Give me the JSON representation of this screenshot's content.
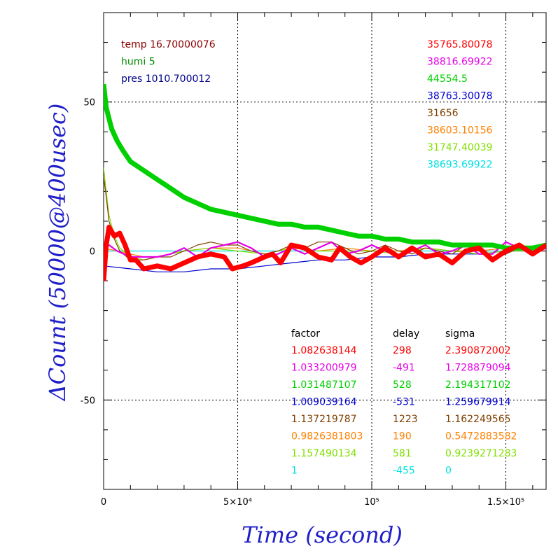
{
  "chart_data": {
    "type": "line",
    "xlabel": "Time (second)",
    "ylabel": "ΔCount (50000@400usec)",
    "xlim": [
      0,
      165000
    ],
    "ylim": [
      -80,
      80
    ],
    "x_ticks": [
      {
        "value": 0,
        "label": "0"
      },
      {
        "value": 50000,
        "label": "5×10⁴"
      },
      {
        "value": 100000,
        "label": "10⁵"
      },
      {
        "value": 150000,
        "label": "1.5×10⁵"
      }
    ],
    "y_ticks": [
      {
        "value": 50,
        "label": "50"
      },
      {
        "value": 0,
        "label": "0"
      },
      {
        "value": -50,
        "label": "-50"
      }
    ],
    "grid": "dotted at major ticks",
    "env_info": [
      {
        "text": "temp 16.70000076",
        "color": "#8b0000"
      },
      {
        "text": "humi 5",
        "color": "#008b00"
      },
      {
        "text": "pres 1010.700012",
        "color": "#00008b"
      }
    ],
    "fit_table": {
      "headers": [
        "factor",
        "delay",
        "sigma"
      ],
      "rows": [
        {
          "factor": "1.082638144",
          "delay": "298",
          "sigma": "2.390872002",
          "color": "#ff0000"
        },
        {
          "factor": "1.033200979",
          "delay": "-491",
          "sigma": "1.728879094",
          "color": "#e600e6"
        },
        {
          "factor": "1.031487107",
          "delay": "528",
          "sigma": "2.194317102",
          "color": "#00d000"
        },
        {
          "factor": "1.009039164",
          "delay": "-531",
          "sigma": "1.259679914",
          "color": "#0000d0"
        },
        {
          "factor": "1.137219787",
          "delay": "1223",
          "sigma": "1.162249565",
          "color": "#804000"
        },
        {
          "factor": "0.9826381803",
          "delay": "190",
          "sigma": "0.5472883582",
          "color": "#ff8000"
        },
        {
          "factor": "1.157490134",
          "delay": "581",
          "sigma": "0.9239271283",
          "color": "#80e000"
        },
        {
          "factor": "1",
          "delay": "-455",
          "sigma": "0",
          "color": "#00e0e0"
        }
      ]
    },
    "series": [
      {
        "value_label": "35765.80078",
        "color": "#ff0000",
        "points": [
          [
            0,
            -10
          ],
          [
            1000,
            2
          ],
          [
            2000,
            8
          ],
          [
            4000,
            5
          ],
          [
            6000,
            6
          ],
          [
            8000,
            2
          ],
          [
            10000,
            -3
          ],
          [
            12000,
            -3
          ],
          [
            15000,
            -6
          ],
          [
            20000,
            -5
          ],
          [
            25000,
            -6
          ],
          [
            30000,
            -4
          ],
          [
            35000,
            -2
          ],
          [
            40000,
            -1
          ],
          [
            45000,
            -2
          ],
          [
            48000,
            -6
          ],
          [
            52000,
            -5
          ],
          [
            55000,
            -4
          ],
          [
            60000,
            -2
          ],
          [
            63000,
            -1
          ],
          [
            66000,
            -4
          ],
          [
            70000,
            2
          ],
          [
            75000,
            1
          ],
          [
            80000,
            -2
          ],
          [
            85000,
            -3
          ],
          [
            88000,
            1
          ],
          [
            92000,
            -2
          ],
          [
            96000,
            -4
          ],
          [
            100000,
            -2
          ],
          [
            105000,
            1
          ],
          [
            110000,
            -2
          ],
          [
            115000,
            1
          ],
          [
            120000,
            -2
          ],
          [
            125000,
            -1
          ],
          [
            130000,
            -4
          ],
          [
            135000,
            0
          ],
          [
            140000,
            1
          ],
          [
            145000,
            -3
          ],
          [
            150000,
            0
          ],
          [
            155000,
            2
          ],
          [
            160000,
            -1
          ],
          [
            165000,
            2
          ]
        ]
      },
      {
        "value_label": "38816.69922",
        "color": "#e600e6",
        "points": [
          [
            0,
            0
          ],
          [
            2000,
            2
          ],
          [
            5000,
            0
          ],
          [
            10000,
            -2
          ],
          [
            15000,
            -2
          ],
          [
            20000,
            -2
          ],
          [
            25000,
            -1
          ],
          [
            30000,
            1
          ],
          [
            35000,
            -2
          ],
          [
            40000,
            1
          ],
          [
            45000,
            2
          ],
          [
            50000,
            3
          ],
          [
            55000,
            1
          ],
          [
            60000,
            -2
          ],
          [
            65000,
            -1
          ],
          [
            70000,
            1
          ],
          [
            75000,
            -1
          ],
          [
            80000,
            1
          ],
          [
            85000,
            3
          ],
          [
            90000,
            -1
          ],
          [
            95000,
            0
          ],
          [
            100000,
            2
          ],
          [
            105000,
            0
          ],
          [
            110000,
            -2
          ],
          [
            115000,
            0
          ],
          [
            120000,
            2
          ],
          [
            125000,
            -1
          ],
          [
            130000,
            0
          ],
          [
            135000,
            2
          ],
          [
            140000,
            -1
          ],
          [
            145000,
            -1
          ],
          [
            150000,
            3
          ],
          [
            155000,
            1
          ],
          [
            160000,
            -1
          ],
          [
            165000,
            1
          ]
        ]
      },
      {
        "value_label": "44554.5",
        "color": "#00d000",
        "points": [
          [
            0,
            56
          ],
          [
            1000,
            48
          ],
          [
            3000,
            41
          ],
          [
            5000,
            37
          ],
          [
            7000,
            34
          ],
          [
            10000,
            30
          ],
          [
            15000,
            27
          ],
          [
            20000,
            24
          ],
          [
            25000,
            21
          ],
          [
            30000,
            18
          ],
          [
            35000,
            16
          ],
          [
            40000,
            14
          ],
          [
            45000,
            13
          ],
          [
            50000,
            12
          ],
          [
            55000,
            11
          ],
          [
            60000,
            10
          ],
          [
            65000,
            9
          ],
          [
            70000,
            9
          ],
          [
            75000,
            8
          ],
          [
            80000,
            8
          ],
          [
            85000,
            7
          ],
          [
            90000,
            6
          ],
          [
            95000,
            5
          ],
          [
            100000,
            5
          ],
          [
            105000,
            4
          ],
          [
            110000,
            4
          ],
          [
            115000,
            3
          ],
          [
            120000,
            3
          ],
          [
            125000,
            3
          ],
          [
            130000,
            2
          ],
          [
            135000,
            2
          ],
          [
            140000,
            2
          ],
          [
            145000,
            2
          ],
          [
            150000,
            1
          ],
          [
            155000,
            1
          ],
          [
            160000,
            1
          ],
          [
            165000,
            2
          ]
        ]
      },
      {
        "value_label": "38763.30078",
        "color": "#0000d0",
        "points": [
          [
            0,
            -5
          ],
          [
            10000,
            -6
          ],
          [
            20000,
            -7
          ],
          [
            30000,
            -7
          ],
          [
            40000,
            -6
          ],
          [
            50000,
            -6
          ],
          [
            60000,
            -5
          ],
          [
            70000,
            -4
          ],
          [
            80000,
            -3
          ],
          [
            90000,
            -3
          ],
          [
            100000,
            -2
          ],
          [
            110000,
            -2
          ],
          [
            120000,
            -1
          ],
          [
            130000,
            -1
          ],
          [
            140000,
            -1
          ],
          [
            150000,
            0
          ],
          [
            160000,
            0
          ],
          [
            165000,
            0
          ]
        ]
      },
      {
        "value_label": "31656",
        "color": "#804000",
        "points": [
          [
            0,
            25
          ],
          [
            1000,
            18
          ],
          [
            2000,
            10
          ],
          [
            4000,
            4
          ],
          [
            6000,
            0
          ],
          [
            10000,
            -3
          ],
          [
            15000,
            -3
          ],
          [
            20000,
            -2
          ],
          [
            25000,
            -2
          ],
          [
            30000,
            0
          ],
          [
            35000,
            2
          ],
          [
            40000,
            3
          ],
          [
            45000,
            2
          ],
          [
            50000,
            2
          ],
          [
            55000,
            0
          ],
          [
            60000,
            -1
          ],
          [
            65000,
            0
          ],
          [
            70000,
            2
          ],
          [
            75000,
            1
          ],
          [
            80000,
            3
          ],
          [
            85000,
            3
          ],
          [
            90000,
            1
          ],
          [
            95000,
            -1
          ],
          [
            100000,
            0
          ],
          [
            105000,
            2
          ],
          [
            110000,
            0
          ],
          [
            115000,
            -1
          ],
          [
            120000,
            1
          ],
          [
            125000,
            0
          ],
          [
            130000,
            -1
          ],
          [
            135000,
            2
          ],
          [
            140000,
            0
          ],
          [
            145000,
            -3
          ],
          [
            150000,
            -1
          ],
          [
            155000,
            1
          ],
          [
            160000,
            0
          ],
          [
            165000,
            0
          ]
        ]
      },
      {
        "value_label": "38603.10156",
        "color": "#ff8000",
        "points": [
          [
            0,
            1
          ],
          [
            5000,
            0
          ],
          [
            10000,
            -1
          ],
          [
            15000,
            -2
          ],
          [
            20000,
            -2
          ],
          [
            25000,
            -1
          ],
          [
            30000,
            0
          ],
          [
            40000,
            1
          ],
          [
            50000,
            1
          ],
          [
            60000,
            -1
          ],
          [
            70000,
            1
          ],
          [
            80000,
            0
          ],
          [
            90000,
            1
          ],
          [
            100000,
            0
          ],
          [
            110000,
            0
          ],
          [
            120000,
            1
          ],
          [
            130000,
            0
          ],
          [
            140000,
            0
          ],
          [
            150000,
            1
          ],
          [
            160000,
            0
          ],
          [
            165000,
            0
          ]
        ]
      },
      {
        "value_label": "31747.40039",
        "color": "#80e000",
        "points": [
          [
            0,
            28
          ],
          [
            1000,
            20
          ],
          [
            2000,
            12
          ],
          [
            4000,
            5
          ],
          [
            6000,
            1
          ],
          [
            10000,
            -2
          ],
          [
            15000,
            -3
          ],
          [
            20000,
            -2
          ],
          [
            25000,
            -1
          ],
          [
            30000,
            0
          ],
          [
            40000,
            1
          ],
          [
            50000,
            0
          ],
          [
            60000,
            -1
          ],
          [
            70000,
            1
          ],
          [
            80000,
            0
          ],
          [
            90000,
            0
          ],
          [
            100000,
            0
          ],
          [
            110000,
            -1
          ],
          [
            120000,
            1
          ],
          [
            130000,
            0
          ],
          [
            140000,
            -1
          ],
          [
            150000,
            0
          ],
          [
            160000,
            0
          ],
          [
            165000,
            1
          ]
        ]
      },
      {
        "value_label": "38693.69922",
        "color": "#00e0e0",
        "points": [
          [
            0,
            0
          ],
          [
            10000,
            0
          ],
          [
            20000,
            0
          ],
          [
            40000,
            0
          ],
          [
            60000,
            0
          ],
          [
            80000,
            0
          ],
          [
            100000,
            0
          ],
          [
            120000,
            0
          ],
          [
            140000,
            0
          ],
          [
            165000,
            0
          ]
        ]
      }
    ]
  }
}
